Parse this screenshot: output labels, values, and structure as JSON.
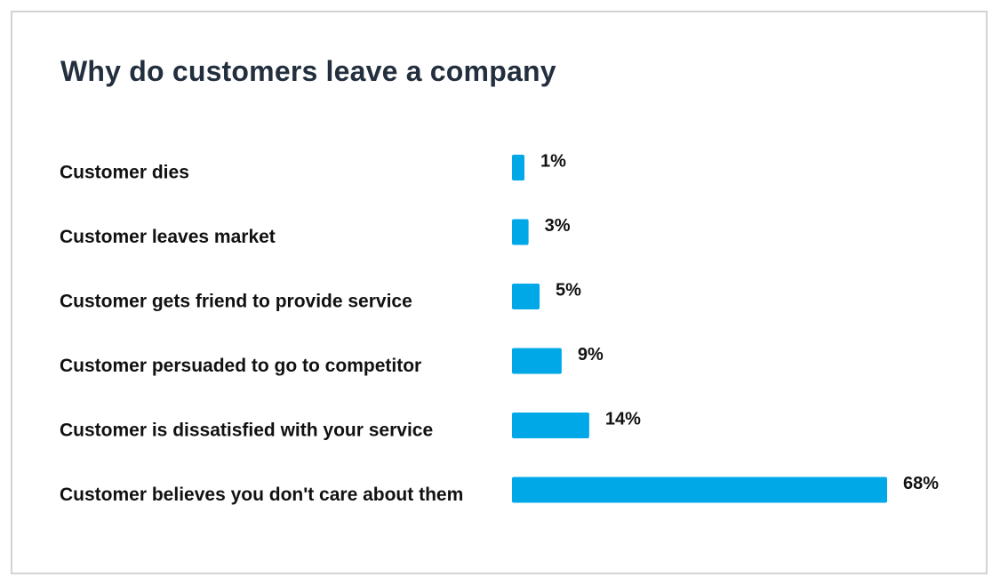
{
  "chart_data": {
    "type": "bar",
    "orientation": "horizontal",
    "title": "Why do customers leave a company",
    "categories": [
      "Customer dies",
      "Customer leaves market",
      "Customer gets friend to provide service",
      "Customer persuaded to go to competitor",
      "Customer is dissatisfied with your service",
      "Customer believes you don't care about them"
    ],
    "values": [
      1,
      3,
      5,
      9,
      14,
      68
    ],
    "value_labels": [
      "1%",
      "3%",
      "5%",
      "9%",
      "14%",
      "68%"
    ],
    "unit": "%",
    "xlim": [
      0,
      68
    ],
    "grid": false,
    "colors": {
      "bar": "#00a8e8",
      "title": "#232f3e",
      "text": "#111111",
      "border": "#d3d3d3"
    }
  }
}
